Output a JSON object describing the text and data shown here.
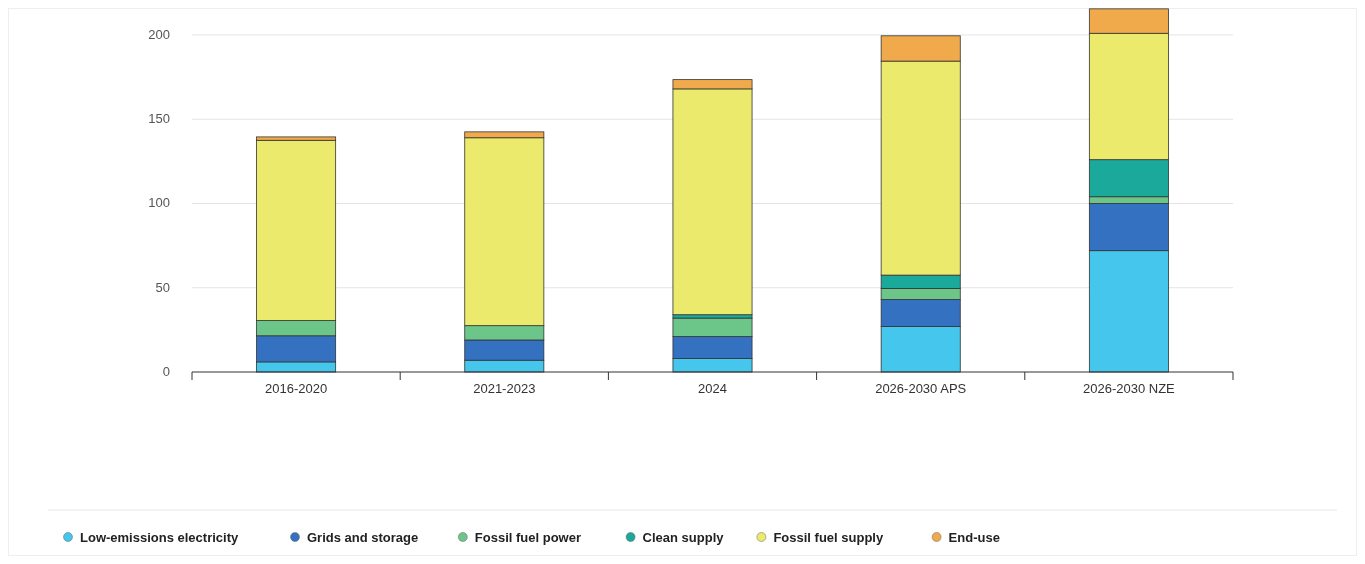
{
  "chart_data": {
    "type": "bar",
    "stacked": true,
    "categories": [
      "2016-2020",
      "2021-2023",
      "2024",
      "2026-2030 APS",
      "2026-2030 NZE"
    ],
    "series": [
      {
        "name": "Low-emissions electricity",
        "color": "#45c6ec",
        "values": [
          6,
          7,
          8,
          27,
          72
        ]
      },
      {
        "name": "Grids and storage",
        "color": "#3571c1",
        "values": [
          15.5,
          12,
          13,
          16,
          28
        ]
      },
      {
        "name": "Fossil fuel power",
        "color": "#6cc68a",
        "values": [
          9,
          8.5,
          11,
          6.5,
          4
        ]
      },
      {
        "name": "Clean supply",
        "color": "#1aa99a",
        "values": [
          0,
          0,
          2,
          8,
          22
        ]
      },
      {
        "name": "Fossil fuel supply",
        "color": "#ebea6c",
        "values": [
          107,
          111.5,
          134,
          127,
          75
        ]
      },
      {
        "name": "End-use",
        "color": "#f0aa4c",
        "values": [
          2,
          3.5,
          5.5,
          15,
          14.5
        ]
      }
    ],
    "ylim": [
      0,
      216
    ],
    "yticks": [
      0,
      50,
      100,
      150,
      200
    ],
    "grid": "y",
    "legend": "bottom"
  }
}
